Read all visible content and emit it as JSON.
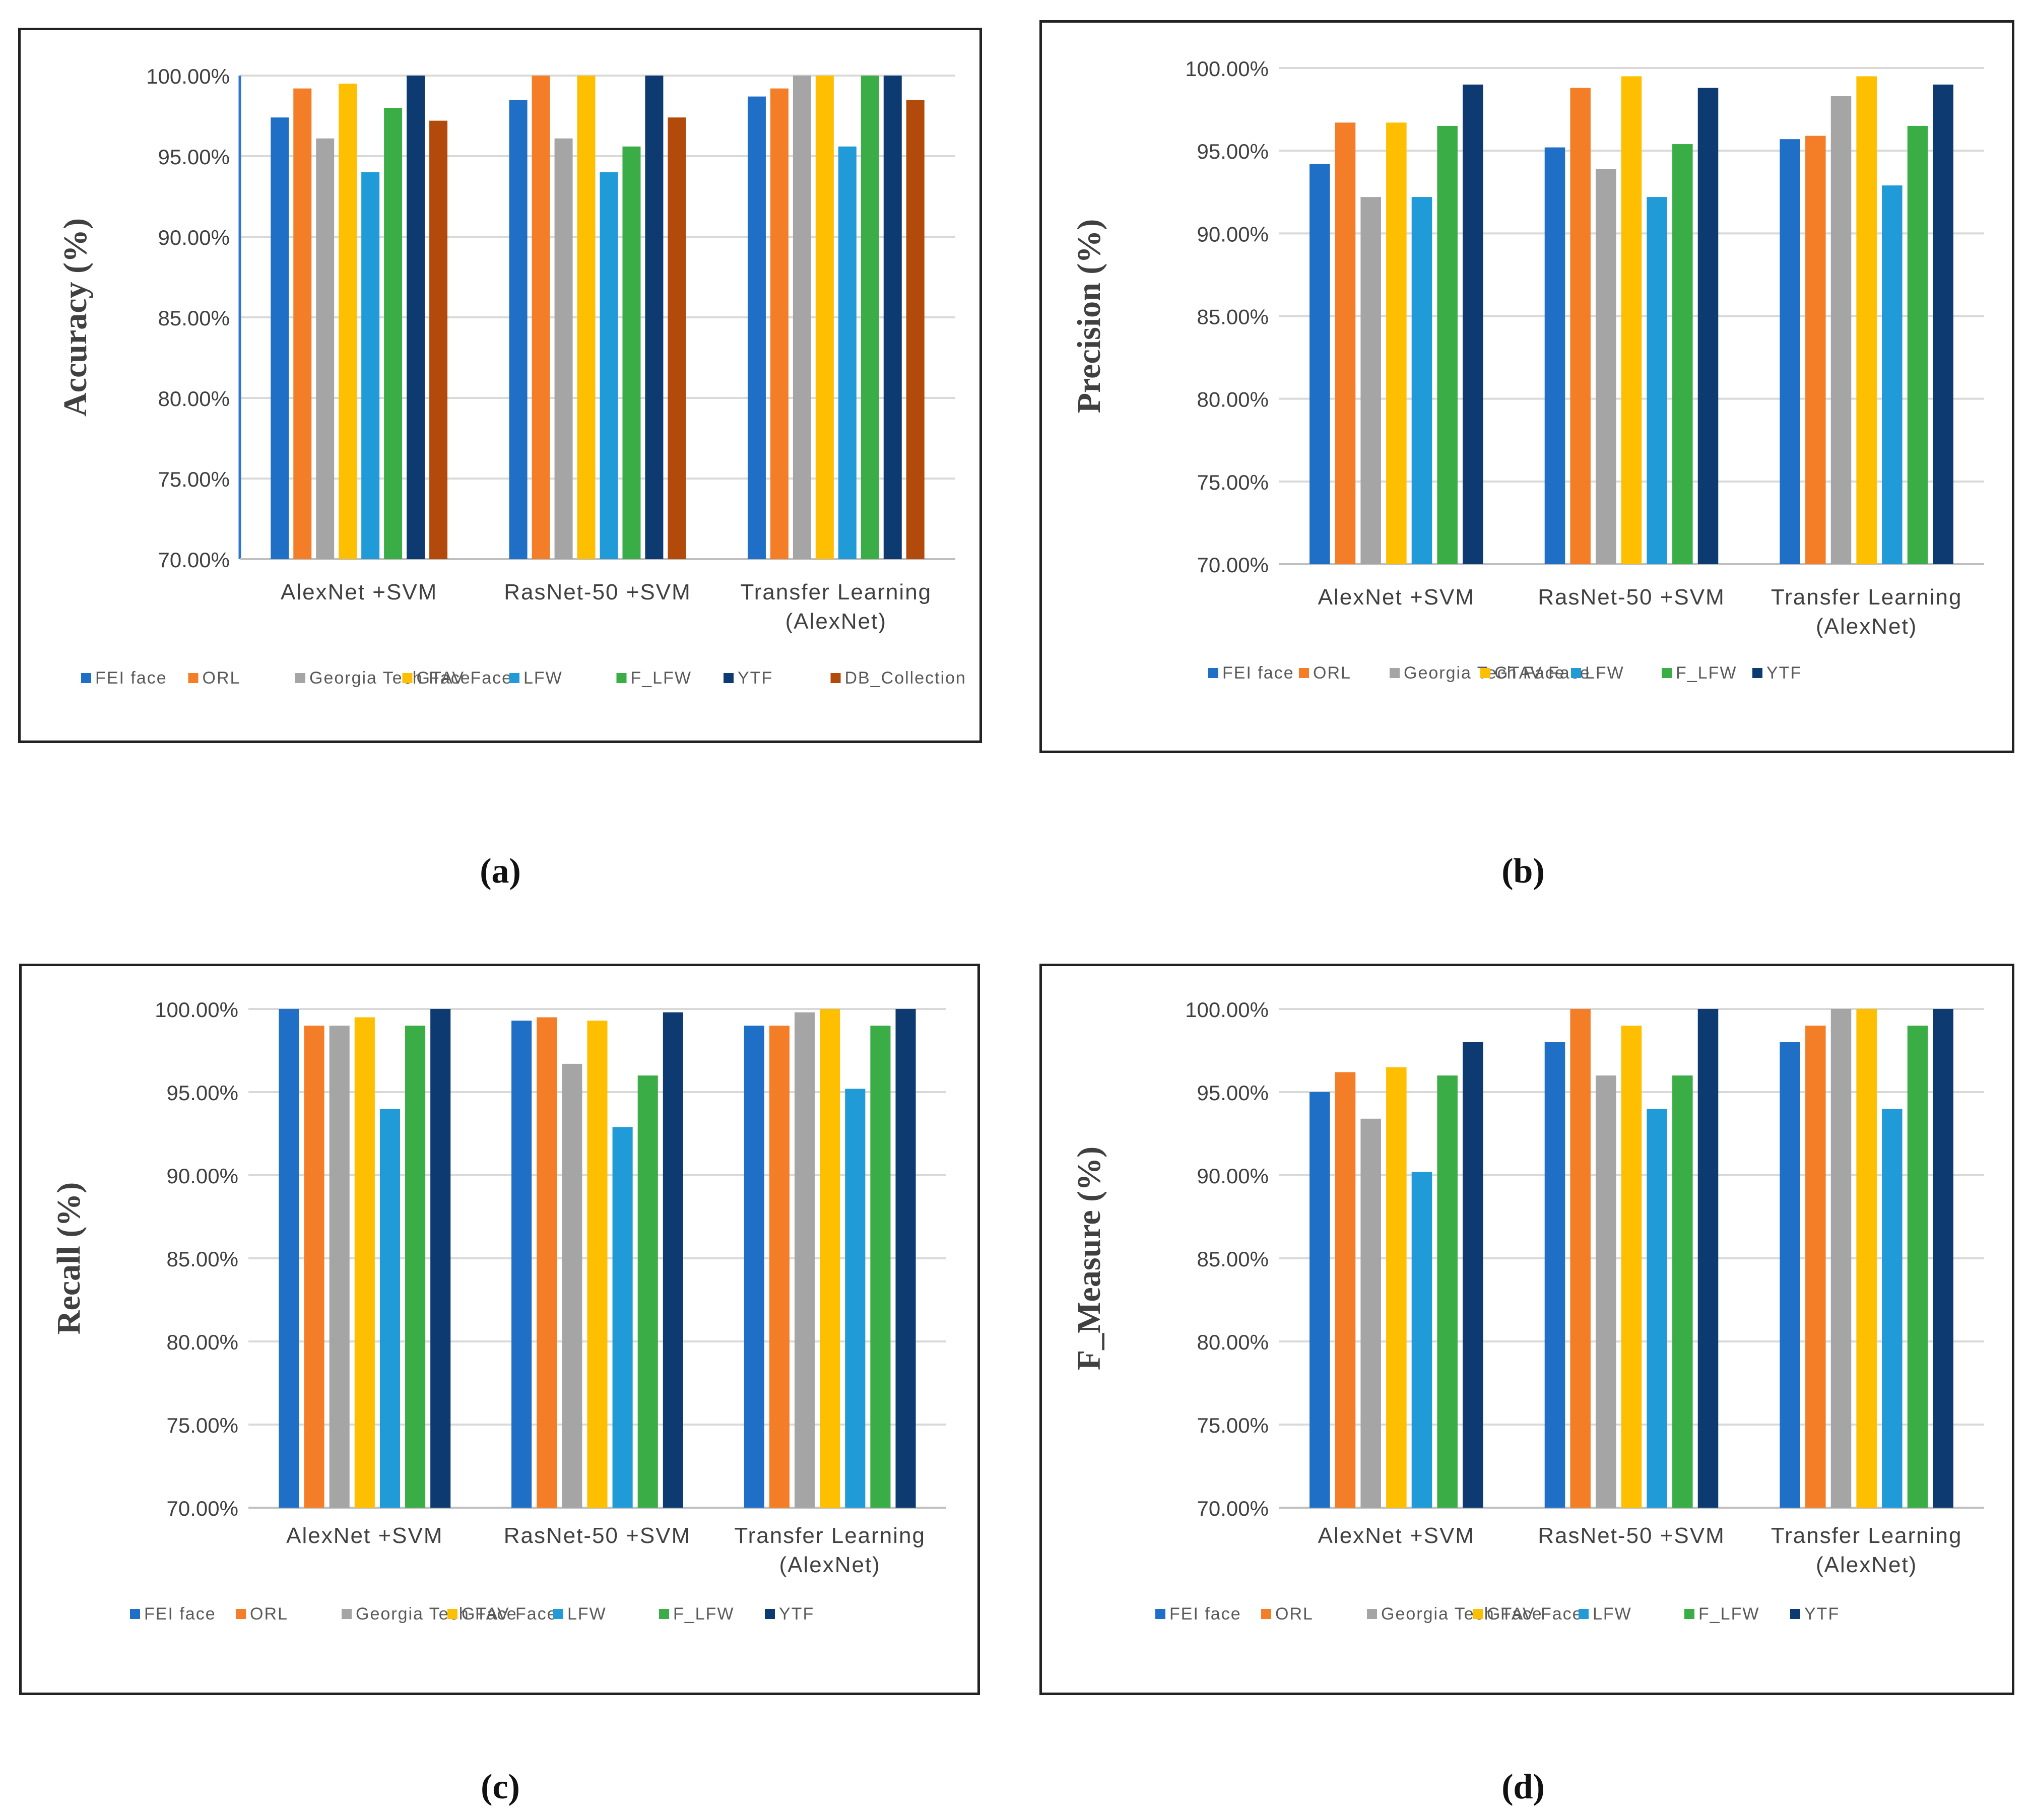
{
  "colors": {
    "FEI face": "#1f6fc6",
    "ORL": "#f47e27",
    "Georgia Tech Face": "#a5a5a5",
    "GTAV Face": "#fdbf00",
    "LFW": "#209bd8",
    "F_LFW": "#3aad46",
    "YTF": "#0e3a72",
    "DB_Collection": "#b24a0c"
  },
  "captions": {
    "a": "(a)",
    "b": "(b)",
    "c": "(c)",
    "d": "(d)"
  },
  "chart_data": [
    {
      "id": "a",
      "type": "bar",
      "ylabel": "Accuracy (%)",
      "ylim": [
        70,
        100
      ],
      "yticks": [
        "70.00%",
        "75.00%",
        "80.00%",
        "85.00%",
        "90.00%",
        "95.00%",
        "100.00%"
      ],
      "categories": [
        [
          "AlexNet +SVM"
        ],
        [
          "RasNet-50 +SVM"
        ],
        [
          "Transfer Learning",
          "(AlexNet)"
        ]
      ],
      "series": [
        {
          "name": "FEI face",
          "legend": "FEI face",
          "values": [
            97.4,
            98.5,
            98.7
          ]
        },
        {
          "name": "ORL",
          "legend": "ORL",
          "values": [
            99.2,
            100.0,
            99.2
          ]
        },
        {
          "name": "Georgia Tech Face",
          "legend": "Georgia Tech Face",
          "values": [
            96.1,
            96.1,
            100.0
          ]
        },
        {
          "name": "GTAV Face",
          "legend": "GTAV Face",
          "values": [
            99.5,
            100.0,
            100.0
          ]
        },
        {
          "name": "LFW",
          "legend": "LFW",
          "values": [
            94.0,
            94.0,
            95.6
          ]
        },
        {
          "name": "F_LFW",
          "legend": "F_LFW",
          "values": [
            98.0,
            95.6,
            100.0
          ]
        },
        {
          "name": "YTF",
          "legend": "YTF",
          "values": [
            100.0,
            100.0,
            100.0
          ]
        },
        {
          "name": "DB_Collection",
          "legend": "DB_Collection",
          "values": [
            97.2,
            97.4,
            98.5
          ]
        }
      ]
    },
    {
      "id": "b",
      "type": "bar",
      "ylabel": "Precision (%)",
      "ylim": [
        70,
        100
      ],
      "yticks": [
        "70.00%",
        "75.00%",
        "80.00%",
        "85.00%",
        "90.00%",
        "95.00%",
        "100.00%"
      ],
      "categories": [
        [
          "AlexNet +SVM"
        ],
        [
          "RasNet-50 +SVM"
        ],
        [
          "Transfer Learning",
          "(AlexNet)"
        ]
      ],
      "series": [
        {
          "name": "FEI face",
          "legend": "FEI face",
          "values": [
            94.2,
            95.2,
            95.7
          ]
        },
        {
          "name": "ORL",
          "legend": "ORL",
          "values": [
            96.7,
            98.8,
            95.9
          ]
        },
        {
          "name": "Georgia Tech Face",
          "legend": "Georgia Tech Face",
          "values": [
            92.2,
            93.9,
            98.3
          ]
        },
        {
          "name": "GTAV Face",
          "legend": "GTAV Face",
          "values": [
            96.7,
            99.5,
            99.5
          ]
        },
        {
          "name": "LFW",
          "legend": "LFW",
          "values": [
            92.2,
            92.2,
            92.9
          ]
        },
        {
          "name": "F_LFW",
          "legend": "F_LFW",
          "values": [
            96.5,
            95.4,
            96.5
          ]
        },
        {
          "name": "YTF",
          "legend": "YTF",
          "values": [
            99.0,
            98.8,
            99.0
          ]
        }
      ]
    },
    {
      "id": "c",
      "type": "bar",
      "ylabel": "Recall (%)",
      "ylim": [
        70,
        100
      ],
      "yticks": [
        "70.00%",
        "75.00%",
        "80.00%",
        "85.00%",
        "90.00%",
        "95.00%",
        "100.00%"
      ],
      "categories": [
        [
          "AlexNet +SVM"
        ],
        [
          "RasNet-50 +SVM"
        ],
        [
          "Transfer Learning",
          "(AlexNet)"
        ]
      ],
      "series": [
        {
          "name": "FEI face",
          "legend": "FEI face",
          "values": [
            100.0,
            99.3,
            99.0
          ]
        },
        {
          "name": "ORL",
          "legend": "ORL",
          "values": [
            99.0,
            99.5,
            99.0
          ]
        },
        {
          "name": "Georgia Tech Face",
          "legend": "Georgia Tech Face",
          "values": [
            99.0,
            96.7,
            99.8
          ]
        },
        {
          "name": "GTAV Face",
          "legend": "GTAV Face",
          "values": [
            99.5,
            99.3,
            100.0
          ]
        },
        {
          "name": "LFW",
          "legend": "LFW",
          "values": [
            94.0,
            92.9,
            95.2
          ]
        },
        {
          "name": "F_LFW",
          "legend": "F_LFW",
          "values": [
            99.0,
            96.0,
            99.0
          ]
        },
        {
          "name": "YTF",
          "legend": "YTF",
          "values": [
            100.0,
            99.8,
            100.0
          ]
        }
      ]
    },
    {
      "id": "d",
      "type": "bar",
      "ylabel": "F_Measure (%)",
      "ylim": [
        70,
        100
      ],
      "yticks": [
        "70.00%",
        "75.00%",
        "80.00%",
        "85.00%",
        "90.00%",
        "95.00%",
        "100.00%"
      ],
      "categories": [
        [
          "AlexNet +SVM"
        ],
        [
          "RasNet-50 +SVM"
        ],
        [
          "Transfer Learning",
          "(AlexNet)"
        ]
      ],
      "series": [
        {
          "name": "FEI face",
          "legend": "FEI face",
          "values": [
            95.0,
            98.0,
            98.0
          ]
        },
        {
          "name": "ORL",
          "legend": "ORL",
          "values": [
            96.2,
            100.0,
            99.0
          ]
        },
        {
          "name": "Georgia Tech Face",
          "legend": "Georgia Tech Face",
          "values": [
            93.4,
            96.0,
            100.0
          ]
        },
        {
          "name": "GTAV Face",
          "legend": "GTAV Face",
          "values": [
            96.5,
            99.0,
            100.0
          ]
        },
        {
          "name": "LFW",
          "legend": "LFW",
          "values": [
            90.2,
            94.0,
            94.0
          ]
        },
        {
          "name": "F_LFW",
          "legend": "F_LFW",
          "values": [
            96.0,
            96.0,
            99.0
          ]
        },
        {
          "name": "YTF",
          "legend": "YTF",
          "values": [
            98.0,
            100.0,
            100.0
          ]
        }
      ]
    }
  ]
}
